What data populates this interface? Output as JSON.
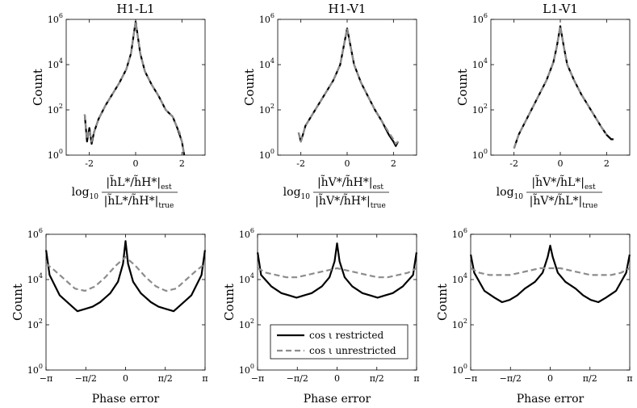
{
  "figure": {
    "ylabel_count": "Count",
    "xlabel_phase": "Phase error",
    "ratio_log_prefix": "log",
    "ratio_log_sub": "10"
  },
  "chart_data": [
    {
      "type": "line",
      "id": "top-h1l1",
      "title": "H1-L1",
      "ylabel": "Count",
      "xlabel": {
        "num": "|h̃L*/h̃H*|",
        "num_sub": "est",
        "den": "|h̃L*/h̃H*|",
        "den_sub": "true"
      },
      "xlim": [
        -3,
        3
      ],
      "xticks": [
        -2,
        0,
        2
      ],
      "xtick_labels": [
        "-2",
        "0",
        "2"
      ],
      "yscale": "log",
      "ylim_exp": [
        0,
        6
      ],
      "ytick_exps": [
        0,
        2,
        4,
        6
      ],
      "series": [
        {
          "name": "restricted",
          "x": [
            -2.2,
            -2.1,
            -2.0,
            -1.9,
            -1.8,
            -1.6,
            -1.3,
            -1.0,
            -0.7,
            -0.4,
            -0.2,
            -0.1,
            0.0,
            0.1,
            0.2,
            0.4,
            0.7,
            1.0,
            1.3,
            1.6,
            1.8,
            1.9,
            2.0,
            2.1
          ],
          "y_exp": [
            1.8,
            0.6,
            1.2,
            0.5,
            1.0,
            1.6,
            2.2,
            2.7,
            3.2,
            3.8,
            4.5,
            5.2,
            5.9,
            5.2,
            4.5,
            3.7,
            3.1,
            2.6,
            2.0,
            1.7,
            1.2,
            0.9,
            0.6,
            0.0
          ]
        },
        {
          "name": "unrestricted",
          "x": [
            -2.2,
            -2.1,
            -2.0,
            -1.9,
            -1.8,
            -1.6,
            -1.3,
            -1.0,
            -0.7,
            -0.4,
            -0.2,
            -0.1,
            0.0,
            0.1,
            0.2,
            0.4,
            0.7,
            1.0,
            1.3,
            1.6,
            1.8,
            1.9,
            2.0,
            2.1
          ],
          "y_exp": [
            1.8,
            0.7,
            1.1,
            0.6,
            1.0,
            1.6,
            2.2,
            2.7,
            3.2,
            3.8,
            4.5,
            5.2,
            5.9,
            5.2,
            4.5,
            3.7,
            3.1,
            2.6,
            2.0,
            1.7,
            1.2,
            1.0,
            0.6,
            0.0
          ]
        }
      ]
    },
    {
      "type": "line",
      "id": "top-h1v1",
      "title": "H1-V1",
      "ylabel": "Count",
      "xlabel": {
        "num": "|h̃V*/h̃H*|",
        "num_sub": "est",
        "den": "|h̃V*/h̃H*|",
        "den_sub": "true"
      },
      "xlim": [
        -3,
        3
      ],
      "xticks": [
        -2,
        0,
        2
      ],
      "xtick_labels": [
        "-2",
        "0",
        "2"
      ],
      "yscale": "log",
      "ylim_exp": [
        0,
        6
      ],
      "ytick_exps": [
        0,
        2,
        4,
        6
      ],
      "series": [
        {
          "name": "restricted",
          "x": [
            -2.1,
            -2.0,
            -1.8,
            -1.5,
            -1.2,
            -0.9,
            -0.6,
            -0.3,
            -0.15,
            0.0,
            0.15,
            0.3,
            0.6,
            0.9,
            1.2,
            1.5,
            1.8,
            2.0,
            2.1,
            2.2
          ],
          "y_exp": [
            1.0,
            0.6,
            1.3,
            1.8,
            2.3,
            2.8,
            3.3,
            4.0,
            4.8,
            5.6,
            4.8,
            4.0,
            3.2,
            2.6,
            2.0,
            1.5,
            0.9,
            0.6,
            0.4,
            0.6
          ]
        },
        {
          "name": "unrestricted",
          "x": [
            -2.1,
            -2.0,
            -1.8,
            -1.5,
            -1.2,
            -0.9,
            -0.6,
            -0.3,
            -0.15,
            0.0,
            0.15,
            0.3,
            0.6,
            0.9,
            1.2,
            1.5,
            1.8,
            2.0,
            2.1,
            2.2
          ],
          "y_exp": [
            1.0,
            0.6,
            1.3,
            1.8,
            2.3,
            2.8,
            3.3,
            4.0,
            4.8,
            5.6,
            4.8,
            4.0,
            3.2,
            2.6,
            2.0,
            1.5,
            1.0,
            0.7,
            0.5,
            0.6
          ]
        }
      ]
    },
    {
      "type": "line",
      "id": "top-l1v1",
      "title": "L1-V1",
      "ylabel": "Count",
      "xlabel": {
        "num": "|h̃V*/h̃L*|",
        "num_sub": "est",
        "den": "|h̃V*/h̃L*|",
        "den_sub": "true"
      },
      "xlim": [
        -3,
        3
      ],
      "xticks": [
        -2,
        0,
        2
      ],
      "xtick_labels": [
        "-2",
        "0",
        "2"
      ],
      "yscale": "log",
      "ylim_exp": [
        0,
        6
      ],
      "ytick_exps": [
        0,
        2,
        4,
        6
      ],
      "series": [
        {
          "name": "restricted",
          "x": [
            -2.0,
            -1.8,
            -1.5,
            -1.2,
            -0.9,
            -0.6,
            -0.3,
            -0.15,
            0.0,
            0.15,
            0.3,
            0.6,
            0.9,
            1.2,
            1.5,
            1.8,
            2.0,
            2.2,
            2.3
          ],
          "y_exp": [
            0.3,
            0.9,
            1.5,
            2.1,
            2.7,
            3.3,
            4.1,
            4.8,
            5.7,
            4.8,
            4.0,
            3.3,
            2.7,
            2.2,
            1.7,
            1.2,
            0.9,
            0.7,
            0.7
          ]
        },
        {
          "name": "unrestricted",
          "x": [
            -2.0,
            -1.8,
            -1.5,
            -1.2,
            -0.9,
            -0.6,
            -0.3,
            -0.15,
            0.0,
            0.15,
            0.3,
            0.6,
            0.9,
            1.2,
            1.5,
            1.8,
            2.0
          ],
          "y_exp": [
            0.3,
            0.9,
            1.5,
            2.1,
            2.7,
            3.3,
            4.1,
            4.8,
            5.7,
            4.8,
            4.0,
            3.3,
            2.7,
            2.2,
            1.7,
            1.2,
            0.9
          ]
        }
      ]
    },
    {
      "type": "line",
      "id": "bot-h1l1",
      "ylabel": "Count",
      "xlabel_text": "Phase error",
      "xlim": [
        -3.1416,
        3.1416
      ],
      "xticks": [
        -3.1416,
        -1.5708,
        0,
        1.5708,
        3.1416
      ],
      "xtick_labels": [
        "−π",
        "−π/2",
        "0",
        "π/2",
        "π"
      ],
      "yscale": "log",
      "ylim_exp": [
        0,
        6
      ],
      "ytick_exps": [
        0,
        2,
        4,
        6
      ],
      "series": [
        {
          "name": "cos ι restricted",
          "x": [
            -3.14,
            -3.0,
            -2.6,
            -2.2,
            -1.9,
            -1.6,
            -1.3,
            -1.0,
            -0.6,
            -0.3,
            -0.1,
            0.0,
            0.1,
            0.3,
            0.6,
            1.0,
            1.3,
            1.6,
            1.9,
            2.2,
            2.6,
            3.0,
            3.14
          ],
          "y_exp": [
            5.3,
            4.2,
            3.3,
            2.9,
            2.6,
            2.7,
            2.8,
            3.0,
            3.4,
            3.9,
            4.7,
            5.7,
            4.7,
            3.9,
            3.4,
            3.0,
            2.8,
            2.7,
            2.6,
            2.9,
            3.3,
            4.2,
            5.3
          ]
        },
        {
          "name": "cos ι unrestricted",
          "x": [
            -3.14,
            -2.8,
            -2.4,
            -2.0,
            -1.6,
            -1.2,
            -0.8,
            -0.4,
            0.0,
            0.4,
            0.8,
            1.2,
            1.6,
            2.0,
            2.4,
            2.8,
            3.14
          ],
          "y_exp": [
            4.7,
            4.4,
            4.0,
            3.6,
            3.5,
            3.7,
            4.1,
            4.6,
            5.0,
            4.6,
            4.1,
            3.7,
            3.5,
            3.6,
            4.0,
            4.4,
            4.7
          ]
        }
      ]
    },
    {
      "type": "line",
      "id": "bot-h1v1",
      "ylabel": "Count",
      "xlabel_text": "Phase error",
      "xlim": [
        -3.1416,
        3.1416
      ],
      "xticks": [
        -3.1416,
        -1.5708,
        0,
        1.5708,
        3.1416
      ],
      "xtick_labels": [
        "−π",
        "−π/2",
        "0",
        "π/2",
        "π"
      ],
      "yscale": "log",
      "ylim_exp": [
        0,
        6
      ],
      "ytick_exps": [
        0,
        2,
        4,
        6
      ],
      "legend": {
        "position": "bottom-center",
        "entries": [
          "cos ι restricted",
          "cos ι unrestricted"
        ]
      },
      "series": [
        {
          "name": "cos ι restricted",
          "x": [
            -3.14,
            -3.0,
            -2.6,
            -2.2,
            -1.9,
            -1.6,
            -1.3,
            -1.0,
            -0.6,
            -0.3,
            -0.1,
            0.0,
            0.1,
            0.3,
            0.6,
            1.0,
            1.3,
            1.6,
            1.9,
            2.2,
            2.6,
            3.0,
            3.14
          ],
          "y_exp": [
            5.2,
            4.2,
            3.7,
            3.4,
            3.3,
            3.2,
            3.3,
            3.4,
            3.7,
            4.1,
            4.8,
            5.6,
            4.8,
            4.1,
            3.7,
            3.4,
            3.3,
            3.2,
            3.3,
            3.4,
            3.7,
            4.2,
            5.2
          ]
        },
        {
          "name": "cos ι unrestricted",
          "x": [
            -3.14,
            -2.8,
            -2.4,
            -2.0,
            -1.6,
            -1.2,
            -0.8,
            -0.4,
            0.0,
            0.4,
            0.8,
            1.2,
            1.6,
            2.0,
            2.4,
            2.8,
            3.14
          ],
          "y_exp": [
            4.5,
            4.3,
            4.2,
            4.1,
            4.1,
            4.2,
            4.3,
            4.4,
            4.5,
            4.4,
            4.3,
            4.2,
            4.1,
            4.1,
            4.2,
            4.3,
            4.5
          ]
        }
      ]
    },
    {
      "type": "line",
      "id": "bot-l1v1",
      "ylabel": "Count",
      "xlabel_text": "Phase error",
      "xlim": [
        -3.1416,
        3.1416
      ],
      "xticks": [
        -3.1416,
        -1.5708,
        0,
        1.5708,
        3.1416
      ],
      "xtick_labels": [
        "−π",
        "−π/2",
        "0",
        "π/2",
        "π"
      ],
      "yscale": "log",
      "ylim_exp": [
        0,
        6
      ],
      "ytick_exps": [
        0,
        2,
        4,
        6
      ],
      "series": [
        {
          "name": "cos ι restricted",
          "x": [
            -3.14,
            -3.0,
            -2.6,
            -2.2,
            -1.9,
            -1.6,
            -1.3,
            -1.0,
            -0.6,
            -0.3,
            -0.1,
            0.0,
            0.1,
            0.3,
            0.6,
            1.0,
            1.3,
            1.6,
            1.9,
            2.2,
            2.6,
            3.0,
            3.14
          ],
          "y_exp": [
            5.1,
            4.3,
            3.5,
            3.2,
            3.0,
            3.1,
            3.3,
            3.6,
            3.9,
            4.3,
            5.0,
            5.5,
            5.0,
            4.3,
            3.9,
            3.6,
            3.3,
            3.1,
            3.0,
            3.2,
            3.5,
            4.3,
            5.1
          ]
        },
        {
          "name": "cos ι unrestricted",
          "x": [
            -3.14,
            -2.8,
            -2.4,
            -2.0,
            -1.6,
            -1.2,
            -0.8,
            -0.4,
            0.0,
            0.4,
            0.8,
            1.2,
            1.6,
            2.0,
            2.4,
            2.8,
            3.14
          ],
          "y_exp": [
            4.5,
            4.3,
            4.2,
            4.2,
            4.2,
            4.3,
            4.4,
            4.5,
            4.5,
            4.5,
            4.4,
            4.3,
            4.2,
            4.2,
            4.2,
            4.3,
            4.5
          ]
        }
      ]
    }
  ]
}
